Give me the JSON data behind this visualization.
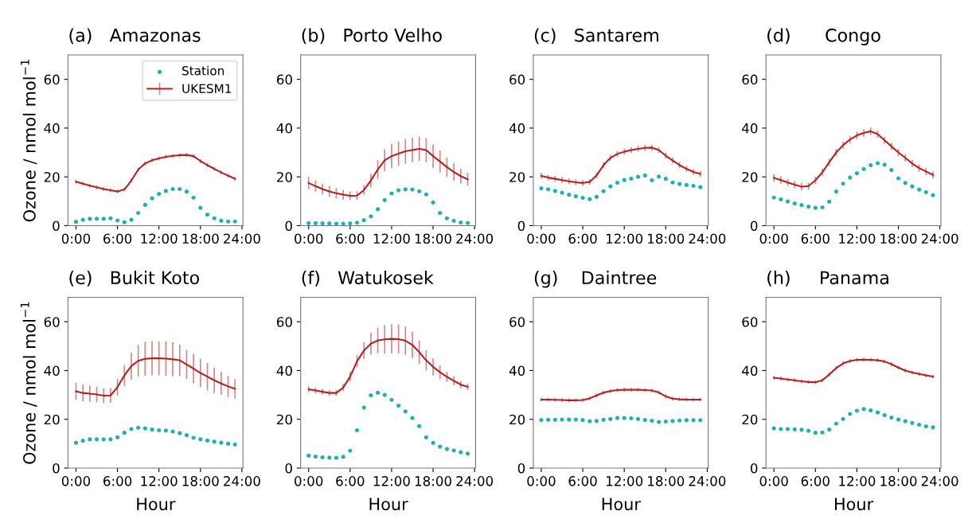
{
  "chart_data": [
    {
      "type": "line",
      "title": "(a)   Amazonas",
      "ylabel": "Ozone / nmol mol$^{−1}$",
      "legend": "top right",
      "x": [
        0,
        1,
        2,
        3,
        4,
        5,
        6,
        7,
        8,
        9,
        10,
        11,
        12,
        13,
        14,
        15,
        16,
        17,
        18,
        19,
        20,
        21,
        22,
        23
      ],
      "xlim": [
        -1.15,
        24.15
      ],
      "ylim": [
        0,
        70
      ],
      "xticks": [
        {
          "value": 0,
          "label": "0:00"
        },
        {
          "value": 6,
          "label": "6:00"
        },
        {
          "value": 12,
          "label": "12:00"
        },
        {
          "value": 18,
          "label": "18:00"
        },
        {
          "value": 24,
          "label": "24:00"
        }
      ],
      "yticks": [
        0,
        20,
        40,
        60
      ],
      "series": [
        {
          "name": "Station",
          "type": "scatter",
          "marker": "circle",
          "color": "#20b2aa",
          "values": [
            1.6,
            2.4,
            2.8,
            2.8,
            2.8,
            3,
            2.1,
            1.4,
            2.4,
            5.2,
            8.5,
            11.2,
            13,
            14.2,
            15,
            15,
            14,
            11.5,
            7.3,
            4.5,
            3,
            2,
            1.7,
            1.7
          ]
        },
        {
          "name": "UKESM1",
          "type": "line",
          "color": "#b22222",
          "values": [
            18,
            17.2,
            16.4,
            15.7,
            15,
            14.5,
            14,
            14.8,
            18.5,
            23,
            25.5,
            26.8,
            27.6,
            28.2,
            28.6,
            28.9,
            29,
            28.5,
            26.5,
            24.8,
            23.3,
            21.8,
            20.5,
            19.2
          ],
          "errors": [
            0.8,
            0.8,
            0.8,
            0.8,
            0.8,
            0.8,
            0.8,
            0.8,
            0.8,
            0.8,
            0.8,
            0.8,
            0.8,
            0.8,
            0.8,
            0.8,
            0.8,
            0.8,
            0.8,
            0.8,
            0.8,
            0.8,
            0.8,
            0.8
          ]
        }
      ]
    },
    {
      "type": "line",
      "title": "(b)   Porto Velho",
      "x": [
        0,
        1,
        2,
        3,
        4,
        5,
        6,
        7,
        8,
        9,
        10,
        11,
        12,
        13,
        14,
        15,
        16,
        17,
        18,
        19,
        20,
        21,
        22,
        23
      ],
      "xlim": [
        -1.15,
        24.15
      ],
      "ylim": [
        0,
        70
      ],
      "xticks": [
        {
          "value": 0,
          "label": "0:00"
        },
        {
          "value": 6,
          "label": "6:00"
        },
        {
          "value": 12,
          "label": "12:00"
        },
        {
          "value": 18,
          "label": "18:00"
        },
        {
          "value": 24,
          "label": "24:00"
        }
      ],
      "yticks": [
        0,
        20,
        40,
        60
      ],
      "series": [
        {
          "type": "scatter",
          "marker": "circle",
          "color": "#20b2aa",
          "values": [
            1,
            1,
            0.9,
            0.9,
            0.8,
            0.8,
            0.9,
            1.2,
            2.2,
            3.8,
            6.7,
            10.5,
            13.2,
            14.5,
            14.9,
            14.8,
            14.1,
            12.8,
            9.5,
            5.2,
            3,
            2,
            1.3,
            1.1
          ]
        },
        {
          "type": "line",
          "color": "#b22222",
          "values": [
            17.5,
            16.2,
            15,
            14,
            13.3,
            12.7,
            12.2,
            12.3,
            14.6,
            18.5,
            23,
            26.8,
            28.5,
            29.5,
            30.5,
            31,
            31.5,
            31,
            28.5,
            26.3,
            24,
            22,
            20.3,
            19
          ],
          "errors": [
            2.5,
            2.3,
            2.2,
            2.2,
            2.1,
            2,
            1.8,
            1.8,
            2,
            2.8,
            3.8,
            4.5,
            5,
            5,
            5,
            5,
            5,
            5,
            4.8,
            4.5,
            4,
            3.5,
            3,
            2.6
          ]
        }
      ]
    },
    {
      "type": "line",
      "title": "(c)   Santarem",
      "x": [
        0,
        1,
        2,
        3,
        4,
        5,
        6,
        7,
        8,
        9,
        10,
        11,
        12,
        13,
        14,
        15,
        16,
        17,
        18,
        19,
        20,
        21,
        22,
        23
      ],
      "xlim": [
        -1.15,
        24.15
      ],
      "ylim": [
        0,
        70
      ],
      "xticks": [
        {
          "value": 0,
          "label": "0:00"
        },
        {
          "value": 6,
          "label": "6:00"
        },
        {
          "value": 12,
          "label": "12:00"
        },
        {
          "value": 18,
          "label": "18:00"
        },
        {
          "value": 24,
          "label": "24:00"
        }
      ],
      "yticks": [
        0,
        20,
        40,
        60
      ],
      "series": [
        {
          "type": "scatter",
          "marker": "circle",
          "color": "#20b2aa",
          "values": [
            15.3,
            14.9,
            14.2,
            13.5,
            12.7,
            12,
            11.4,
            10.9,
            11.8,
            14.1,
            16.1,
            17.6,
            18.7,
            19.3,
            20,
            20.6,
            18.6,
            20.1,
            19.2,
            17.7,
            17.1,
            16.7,
            16.3,
            15.8
          ]
        },
        {
          "type": "line",
          "color": "#b22222",
          "values": [
            20.4,
            19.7,
            19.2,
            18.7,
            18.2,
            17.8,
            17.5,
            17.9,
            20.6,
            24.8,
            27.8,
            29.4,
            30.3,
            31,
            31.5,
            31.9,
            32,
            31,
            28.7,
            26.7,
            24.8,
            23.3,
            22,
            21.2
          ],
          "errors": [
            1.2,
            1.2,
            1.2,
            1.2,
            1.2,
            1.2,
            1.2,
            1.2,
            1.2,
            1.2,
            1.2,
            1.2,
            1.2,
            1.2,
            1.2,
            1.2,
            1.2,
            1.2,
            1.2,
            1.2,
            1.2,
            1.2,
            1.2,
            1.2
          ]
        }
      ]
    },
    {
      "type": "line",
      "title": "(d)      Congo",
      "x": [
        0,
        1,
        2,
        3,
        4,
        5,
        6,
        7,
        8,
        9,
        10,
        11,
        12,
        13,
        14,
        15,
        16,
        17,
        18,
        19,
        20,
        21,
        22,
        23
      ],
      "xlim": [
        -1.15,
        24.15
      ],
      "ylim": [
        0,
        70
      ],
      "xticks": [
        {
          "value": 0,
          "label": "0:00"
        },
        {
          "value": 6,
          "label": "6:00"
        },
        {
          "value": 12,
          "label": "12:00"
        },
        {
          "value": 18,
          "label": "18:00"
        },
        {
          "value": 24,
          "label": "24:00"
        }
      ],
      "yticks": [
        0,
        20,
        40,
        60
      ],
      "series": [
        {
          "type": "scatter",
          "marker": "circle",
          "color": "#20b2aa",
          "values": [
            11.5,
            10.8,
            9.9,
            9.1,
            8.4,
            7.8,
            7.3,
            7.5,
            9.8,
            14,
            17.2,
            19.7,
            21.5,
            23.2,
            24.8,
            25.6,
            25,
            22.8,
            19.4,
            17.5,
            16.1,
            14.8,
            13.7,
            12.5
          ]
        },
        {
          "type": "line",
          "color": "#b22222",
          "values": [
            19.6,
            18.7,
            17.7,
            16.8,
            16,
            16.2,
            18.6,
            21.9,
            26,
            30,
            33,
            35.3,
            37,
            38,
            38.7,
            37.5,
            35,
            32.5,
            30,
            27.8,
            25.5,
            23.6,
            22.2,
            20.8
          ],
          "errors": [
            1.5,
            1.5,
            1.5,
            1.5,
            1.5,
            1.5,
            1.5,
            1.5,
            1.5,
            1.5,
            1.5,
            1.5,
            1.5,
            1.5,
            1.5,
            1.5,
            1.5,
            1.5,
            1.5,
            1.5,
            1.5,
            1.5,
            1.5,
            1.5
          ]
        }
      ]
    },
    {
      "type": "line",
      "title": "(e)   Bukit Koto",
      "ylabel": "Ozone / nmol mol$^{−1}$",
      "xlabel": "Hour",
      "x": [
        0,
        1,
        2,
        3,
        4,
        5,
        6,
        7,
        8,
        9,
        10,
        11,
        12,
        13,
        14,
        15,
        16,
        17,
        18,
        19,
        20,
        21,
        22,
        23
      ],
      "xlim": [
        -1.15,
        24.15
      ],
      "ylim": [
        0,
        70
      ],
      "xticks": [
        {
          "value": 0,
          "label": "0:00"
        },
        {
          "value": 6,
          "label": "6:00"
        },
        {
          "value": 12,
          "label": "12:00"
        },
        {
          "value": 18,
          "label": "18:00"
        },
        {
          "value": 24,
          "label": "24:00"
        }
      ],
      "yticks": [
        0,
        20,
        40,
        60
      ],
      "series": [
        {
          "type": "scatter",
          "marker": "circle",
          "color": "#20b2aa",
          "values": [
            10.4,
            11.2,
            11.8,
            11.8,
            11.8,
            11.8,
            12.6,
            14.5,
            16,
            16.5,
            16.3,
            15.8,
            15.5,
            15.4,
            15,
            14.3,
            13.5,
            12.4,
            11.8,
            11.3,
            10.8,
            10.4,
            10,
            9.7
          ]
        },
        {
          "type": "line",
          "color": "#b22222",
          "values": [
            31.5,
            30.8,
            30.5,
            30.2,
            29.7,
            29.8,
            33.2,
            38,
            41.8,
            44,
            44.8,
            45,
            45,
            44.9,
            44.6,
            44.2,
            42.5,
            40.8,
            39,
            37.5,
            36,
            34.7,
            33.5,
            32.5
          ],
          "errors": [
            3.5,
            3.5,
            3.3,
            3.2,
            3,
            3,
            3.5,
            4.3,
            5.5,
            6.5,
            7,
            7,
            7,
            7,
            7,
            6.5,
            6,
            6,
            5.8,
            5.6,
            5.2,
            4.7,
            4.4,
            4
          ]
        }
      ]
    },
    {
      "type": "line",
      "title": "(f)   Watukosek",
      "xlabel": "Hour",
      "x": [
        0,
        1,
        2,
        3,
        4,
        5,
        6,
        7,
        8,
        9,
        10,
        11,
        12,
        13,
        14,
        15,
        16,
        17,
        18,
        19,
        20,
        21,
        22,
        23
      ],
      "xlim": [
        -1.15,
        24.15
      ],
      "ylim": [
        0,
        70
      ],
      "xticks": [
        {
          "value": 0,
          "label": "0:00"
        },
        {
          "value": 6,
          "label": "6:00"
        },
        {
          "value": 12,
          "label": "12:00"
        },
        {
          "value": 18,
          "label": "18:00"
        },
        {
          "value": 24,
          "label": "24:00"
        }
      ],
      "yticks": [
        0,
        20,
        40,
        60
      ],
      "series": [
        {
          "type": "scatter",
          "marker": "circle",
          "color": "#20b2aa",
          "values": [
            5.1,
            4.7,
            4.4,
            4.3,
            4.2,
            4.6,
            7.1,
            15.5,
            24.8,
            29.8,
            30.9,
            30,
            28,
            25.6,
            23.2,
            20.5,
            17.2,
            12.6,
            10.3,
            8.8,
            7.8,
            7.2,
            6.5,
            5.9
          ]
        },
        {
          "type": "line",
          "color": "#b22222",
          "values": [
            32.3,
            31.8,
            31.3,
            30.8,
            30.8,
            33,
            37.5,
            43.8,
            48.2,
            51,
            52.3,
            52.8,
            53,
            52.9,
            52.2,
            50.5,
            47.5,
            44.2,
            41.5,
            39.3,
            37.4,
            35.8,
            34.2,
            33.3
          ],
          "errors": [
            1.2,
            1.2,
            1.2,
            1.2,
            1.2,
            1.4,
            2,
            2.5,
            3.5,
            4.5,
            5.2,
            5.8,
            6,
            6,
            5.8,
            5.4,
            4.8,
            4.2,
            3.5,
            2.8,
            2.1,
            1.8,
            1.5,
            1.3
          ]
        }
      ]
    },
    {
      "type": "line",
      "title": "(g)    Daintree",
      "xlabel": "Hour",
      "x": [
        0,
        1,
        2,
        3,
        4,
        5,
        6,
        7,
        8,
        9,
        10,
        11,
        12,
        13,
        14,
        15,
        16,
        17,
        18,
        19,
        20,
        21,
        22,
        23
      ],
      "xlim": [
        -1.15,
        24.15
      ],
      "ylim": [
        0,
        70
      ],
      "xticks": [
        {
          "value": 0,
          "label": "0:00"
        },
        {
          "value": 6,
          "label": "6:00"
        },
        {
          "value": 12,
          "label": "12:00"
        },
        {
          "value": 18,
          "label": "18:00"
        },
        {
          "value": 24,
          "label": "24:00"
        }
      ],
      "yticks": [
        0,
        20,
        40,
        60
      ],
      "series": [
        {
          "type": "scatter",
          "marker": "circle",
          "color": "#20b2aa",
          "values": [
            19.7,
            19.8,
            19.8,
            19.9,
            19.9,
            19.9,
            19.7,
            19.2,
            19.3,
            19.8,
            20.1,
            20.5,
            20.5,
            20.4,
            20.1,
            19.7,
            19.4,
            18.9,
            19.1,
            19.3,
            19.5,
            19.6,
            19.6,
            19.6
          ]
        },
        {
          "type": "line",
          "color": "#b22222",
          "values": [
            28.1,
            28.1,
            28,
            27.9,
            27.8,
            27.8,
            27.9,
            28.6,
            29.8,
            30.9,
            31.6,
            32,
            32.1,
            32.1,
            32.1,
            32,
            31.8,
            31,
            29.4,
            28.5,
            28.2,
            28.1,
            28.1,
            28.1
          ],
          "errors": [
            0.8,
            0.8,
            0.8,
            0.8,
            0.8,
            0.8,
            0.8,
            0.8,
            0.8,
            0.8,
            0.8,
            0.8,
            0.8,
            0.8,
            0.8,
            0.8,
            0.8,
            0.8,
            0.8,
            0.8,
            0.8,
            0.8,
            0.8,
            0.8
          ]
        }
      ]
    },
    {
      "type": "line",
      "title": "(h)     Panama",
      "xlabel": "Hour",
      "x": [
        0,
        1,
        2,
        3,
        4,
        5,
        6,
        7,
        8,
        9,
        10,
        11,
        12,
        13,
        14,
        15,
        16,
        17,
        18,
        19,
        20,
        21,
        22,
        23
      ],
      "xlim": [
        -1.15,
        24.15
      ],
      "ylim": [
        0,
        70
      ],
      "xticks": [
        {
          "value": 0,
          "label": "0:00"
        },
        {
          "value": 6,
          "label": "6:00"
        },
        {
          "value": 12,
          "label": "12:00"
        },
        {
          "value": 18,
          "label": "18:00"
        },
        {
          "value": 24,
          "label": "24:00"
        }
      ],
      "yticks": [
        0,
        20,
        40,
        60
      ],
      "series": [
        {
          "type": "scatter",
          "marker": "circle",
          "color": "#20b2aa",
          "values": [
            16.3,
            16,
            16,
            15.9,
            15.7,
            15.3,
            14.5,
            14.6,
            15.8,
            18.2,
            20.1,
            22.2,
            23.5,
            24.2,
            23.6,
            22.8,
            21.7,
            20.7,
            19.9,
            19.2,
            18.5,
            17.8,
            17.1,
            16.7
          ]
        },
        {
          "type": "line",
          "color": "#b22222",
          "values": [
            37,
            36.7,
            36.3,
            36,
            35.6,
            35.3,
            35.2,
            36,
            38.4,
            41,
            42.9,
            43.9,
            44.4,
            44.5,
            44.4,
            44.2,
            43.7,
            42.6,
            41.2,
            40,
            39.2,
            38.6,
            38,
            37.5
          ],
          "errors": [
            0.8,
            0.8,
            0.8,
            0.8,
            0.8,
            0.8,
            0.8,
            0.8,
            0.8,
            0.8,
            0.8,
            0.8,
            0.8,
            0.8,
            0.8,
            0.8,
            0.8,
            0.8,
            0.8,
            0.8,
            0.8,
            0.8,
            0.8,
            0.8
          ]
        }
      ]
    }
  ]
}
